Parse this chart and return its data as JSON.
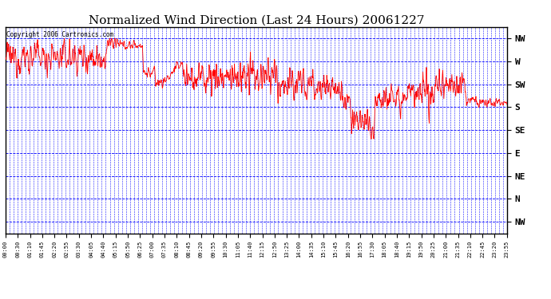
{
  "title": "Normalized Wind Direction (Last 24 Hours) 20061227",
  "copyright_text": "Copyright 2006 Cartronics.com",
  "background_color": "#ffffff",
  "plot_bg_color": "#ffffff",
  "line_color": "#ff0000",
  "grid_color": "#0000ff",
  "ytick_labels": [
    "NW",
    "W",
    "SW",
    "S",
    "SE",
    "E",
    "NE",
    "N",
    "NW"
  ],
  "ytick_values": [
    8,
    7,
    6,
    5,
    4,
    3,
    2,
    1,
    0
  ],
  "ylim": [
    -0.5,
    8.5
  ],
  "xtick_labels": [
    "00:00",
    "00:30",
    "01:10",
    "01:45",
    "02:20",
    "02:55",
    "03:30",
    "04:05",
    "04:40",
    "05:15",
    "05:50",
    "06:25",
    "07:00",
    "07:35",
    "08:10",
    "08:45",
    "09:20",
    "09:55",
    "10:30",
    "11:05",
    "11:40",
    "12:15",
    "12:50",
    "13:25",
    "14:00",
    "14:35",
    "15:10",
    "15:45",
    "16:20",
    "16:55",
    "17:30",
    "18:05",
    "18:40",
    "19:15",
    "19:50",
    "20:25",
    "21:00",
    "21:35",
    "22:10",
    "22:45",
    "23:20",
    "23:55"
  ],
  "figsize": [
    6.9,
    3.75
  ],
  "dpi": 100
}
